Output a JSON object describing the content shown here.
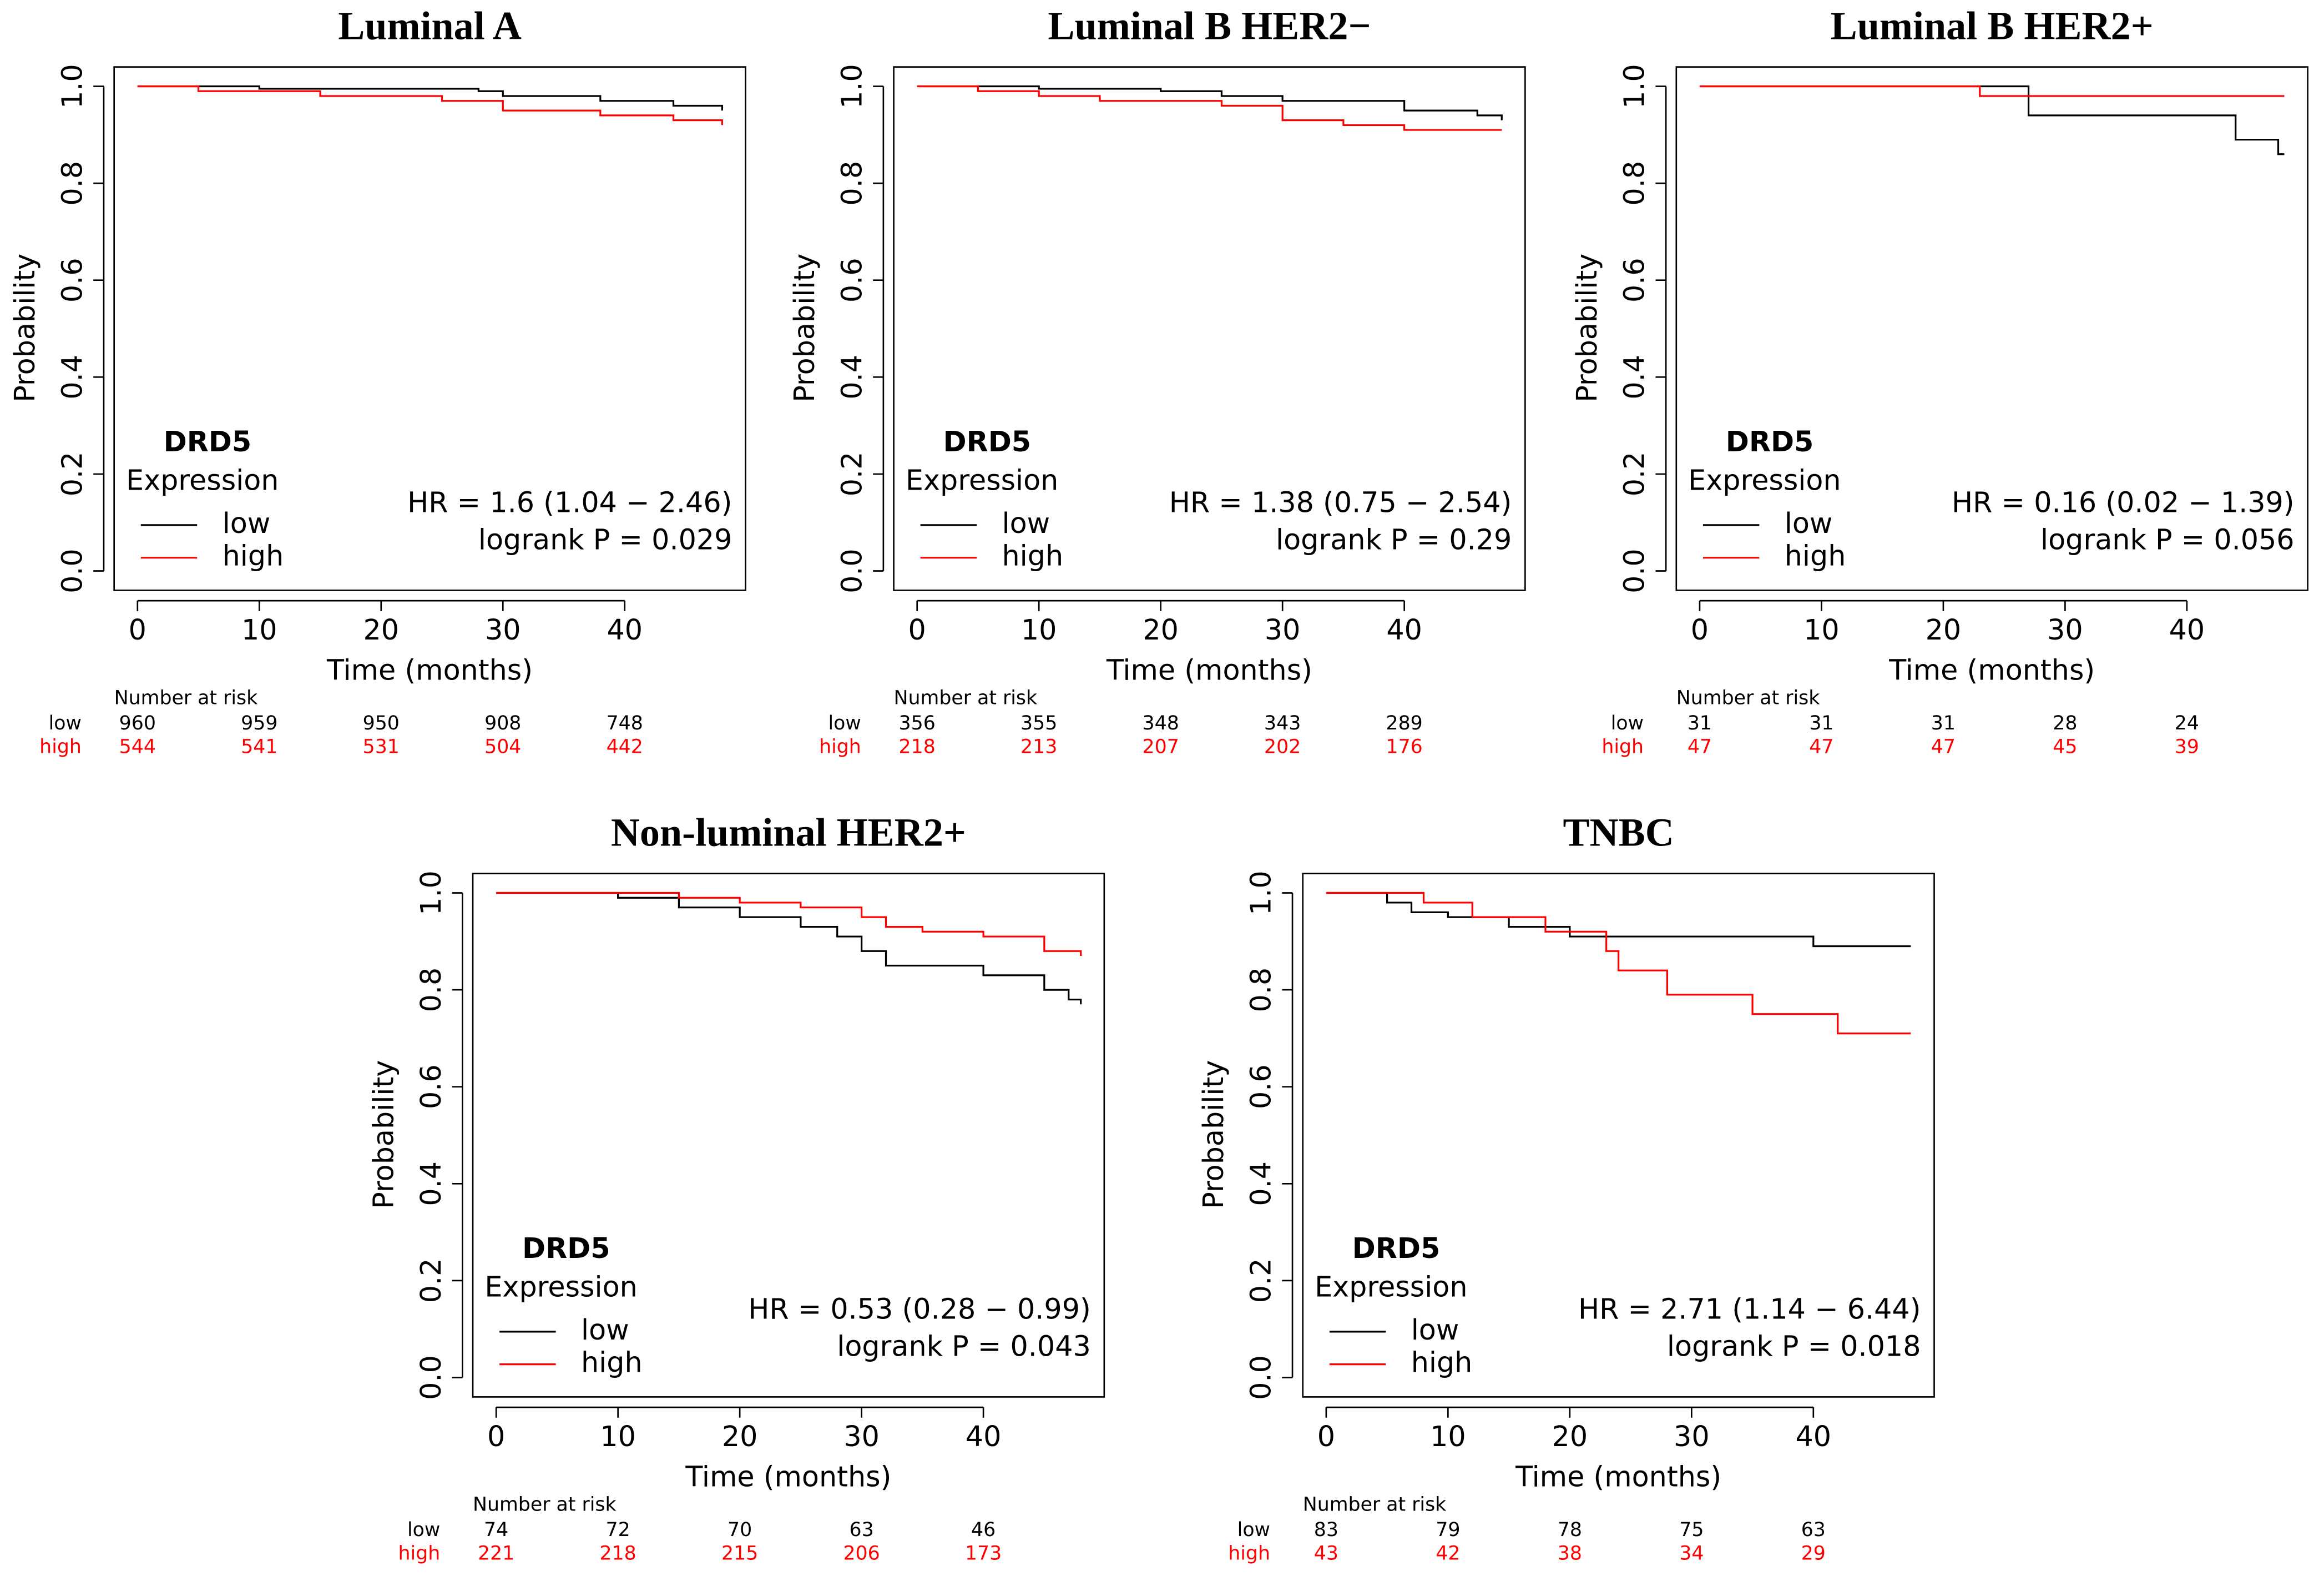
{
  "chart_data": [
    {
      "type": "step",
      "title": "Luminal A",
      "xlabel": "Time (months)",
      "ylabel": "Probability",
      "xlim": [
        -1.92,
        49.92
      ],
      "ylim": [
        -0.04,
        1.04
      ],
      "xticks": [
        0,
        10,
        20,
        30,
        40
      ],
      "yticks": [
        {
          "value": 0,
          "label": "0.0"
        },
        0.2,
        0.4,
        0.6,
        0.8,
        {
          "value": 1,
          "label": "1.0"
        }
      ],
      "legend_title": "DRD5",
      "legend_subtitle": "Expression",
      "annotations": [
        "HR = 1.6 (1.04 − 2.46)",
        "logrank P = 0.029"
      ],
      "series": [
        {
          "name": "low",
          "color": "#000000",
          "x": [
            0,
            10,
            28,
            30,
            38,
            44,
            48
          ],
          "values": [
            1,
            0.995,
            0.99,
            0.98,
            0.97,
            0.96,
            0.95
          ]
        },
        {
          "name": "high",
          "color": "#ff0000",
          "x": [
            0,
            5,
            15,
            25,
            30,
            38,
            44,
            48
          ],
          "values": [
            1,
            0.99,
            0.98,
            0.97,
            0.95,
            0.94,
            0.93,
            0.92
          ]
        }
      ],
      "risk_table": {
        "title": "Number at risk",
        "rows": [
          {
            "name": "low",
            "values": [
              960,
              959,
              950,
              908,
              748
            ]
          },
          {
            "name": "high",
            "values": [
              544,
              541,
              531,
              504,
              442
            ]
          }
        ]
      }
    },
    {
      "type": "step",
      "title": "Luminal B HER2−",
      "xlabel": "Time (months)",
      "ylabel": "Probability",
      "xlim": [
        -1.92,
        49.92
      ],
      "ylim": [
        -0.04,
        1.04
      ],
      "xticks": [
        0,
        10,
        20,
        30,
        40
      ],
      "yticks": [
        {
          "value": 0,
          "label": "0.0"
        },
        0.2,
        0.4,
        0.6,
        0.8,
        {
          "value": 1,
          "label": "1.0"
        }
      ],
      "legend_title": "DRD5",
      "legend_subtitle": "Expression",
      "annotations": [
        "HR = 1.38 (0.75 − 2.54)",
        "logrank P = 0.29"
      ],
      "series": [
        {
          "name": "low",
          "color": "#000000",
          "x": [
            0,
            10,
            20,
            25,
            30,
            40,
            46,
            48
          ],
          "values": [
            1,
            0.995,
            0.99,
            0.98,
            0.97,
            0.95,
            0.94,
            0.93
          ]
        },
        {
          "name": "high",
          "color": "#ff0000",
          "x": [
            0,
            5,
            10,
            15,
            25,
            30,
            35,
            40,
            48
          ],
          "values": [
            1,
            0.99,
            0.98,
            0.97,
            0.96,
            0.93,
            0.92,
            0.91,
            0.91
          ]
        }
      ],
      "risk_table": {
        "title": "Number at risk",
        "rows": [
          {
            "name": "low",
            "values": [
              356,
              355,
              348,
              343,
              289
            ]
          },
          {
            "name": "high",
            "values": [
              218,
              213,
              207,
              202,
              176
            ]
          }
        ]
      }
    },
    {
      "type": "step",
      "title": "Luminal B HER2+",
      "xlabel": "Time (months)",
      "ylabel": "Probability",
      "xlim": [
        -1.92,
        49.92
      ],
      "ylim": [
        -0.04,
        1.04
      ],
      "xticks": [
        0,
        10,
        20,
        30,
        40
      ],
      "yticks": [
        {
          "value": 0,
          "label": "0.0"
        },
        0.2,
        0.4,
        0.6,
        0.8,
        {
          "value": 1,
          "label": "1.0"
        }
      ],
      "legend_title": "DRD5",
      "legend_subtitle": "Expression",
      "annotations": [
        "HR = 0.16 (0.02 − 1.39)",
        "logrank P = 0.056"
      ],
      "series": [
        {
          "name": "low",
          "color": "#000000",
          "x": [
            0,
            27,
            44,
            47.5,
            48
          ],
          "values": [
            1,
            0.94,
            0.89,
            0.86,
            0.86
          ]
        },
        {
          "name": "high",
          "color": "#ff0000",
          "x": [
            0,
            23,
            48
          ],
          "values": [
            1,
            0.98,
            0.98
          ]
        }
      ],
      "risk_table": {
        "title": "Number at risk",
        "rows": [
          {
            "name": "low",
            "values": [
              31,
              31,
              31,
              28,
              24
            ]
          },
          {
            "name": "high",
            "values": [
              47,
              47,
              47,
              45,
              39
            ]
          }
        ]
      }
    },
    {
      "type": "step",
      "title": "Non-luminal HER2+",
      "xlabel": "Time (months)",
      "ylabel": "Probability",
      "xlim": [
        -1.92,
        49.92
      ],
      "ylim": [
        -0.04,
        1.04
      ],
      "xticks": [
        0,
        10,
        20,
        30,
        40
      ],
      "yticks": [
        {
          "value": 0,
          "label": "0.0"
        },
        0.2,
        0.4,
        0.6,
        0.8,
        {
          "value": 1,
          "label": "1.0"
        }
      ],
      "legend_title": "DRD5",
      "legend_subtitle": "Expression",
      "annotations": [
        "HR = 0.53 (0.28 − 0.99)",
        "logrank P = 0.043"
      ],
      "series": [
        {
          "name": "low",
          "color": "#000000",
          "x": [
            0,
            10,
            15,
            20,
            25,
            28,
            30,
            32,
            35,
            40,
            45,
            47,
            48
          ],
          "values": [
            1,
            0.99,
            0.97,
            0.95,
            0.93,
            0.91,
            0.88,
            0.85,
            0.85,
            0.83,
            0.8,
            0.78,
            0.77
          ]
        },
        {
          "name": "high",
          "color": "#ff0000",
          "x": [
            0,
            15,
            20,
            25,
            30,
            32,
            35,
            40,
            45,
            48
          ],
          "values": [
            1,
            0.99,
            0.98,
            0.97,
            0.95,
            0.93,
            0.92,
            0.91,
            0.88,
            0.87
          ]
        }
      ],
      "risk_table": {
        "title": "Number at risk",
        "rows": [
          {
            "name": "low",
            "values": [
              74,
              72,
              70,
              63,
              46
            ]
          },
          {
            "name": "high",
            "values": [
              221,
              218,
              215,
              206,
              173
            ]
          }
        ]
      }
    },
    {
      "type": "step",
      "title": "TNBC",
      "xlabel": "Time (months)",
      "ylabel": "Probability",
      "xlim": [
        -1.92,
        49.92
      ],
      "ylim": [
        -0.04,
        1.04
      ],
      "xticks": [
        0,
        10,
        20,
        30,
        40
      ],
      "yticks": [
        {
          "value": 0,
          "label": "0.0"
        },
        0.2,
        0.4,
        0.6,
        0.8,
        {
          "value": 1,
          "label": "1.0"
        }
      ],
      "legend_title": "DRD5",
      "legend_subtitle": "Expression",
      "annotations": [
        "HR = 2.71 (1.14 − 6.44)",
        "logrank P = 0.018"
      ],
      "series": [
        {
          "name": "low",
          "color": "#000000",
          "x": [
            0,
            5,
            7,
            10,
            15,
            20,
            30,
            40,
            48
          ],
          "values": [
            1,
            0.98,
            0.96,
            0.95,
            0.93,
            0.91,
            0.91,
            0.89,
            0.89
          ]
        },
        {
          "name": "high",
          "color": "#ff0000",
          "x": [
            0,
            8,
            12,
            18,
            23,
            24,
            28,
            35,
            42,
            48
          ],
          "values": [
            1,
            0.98,
            0.95,
            0.92,
            0.88,
            0.84,
            0.79,
            0.75,
            0.71,
            0.71
          ]
        }
      ],
      "risk_table": {
        "title": "Number at risk",
        "rows": [
          {
            "name": "low",
            "values": [
              83,
              79,
              78,
              75,
              63
            ]
          },
          {
            "name": "high",
            "values": [
              43,
              42,
              38,
              34,
              29
            ]
          }
        ]
      }
    }
  ]
}
